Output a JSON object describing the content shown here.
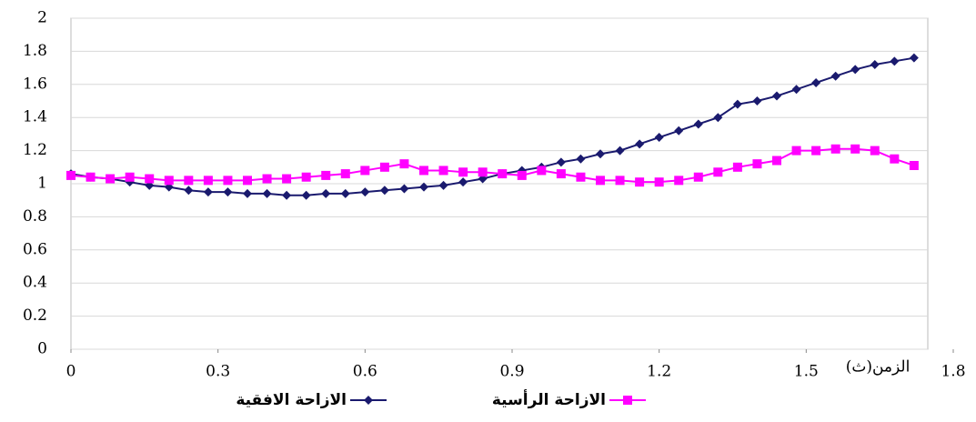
{
  "chart_data": {
    "type": "line",
    "x_label": "الزمن(ث)",
    "x": [
      0,
      0.04,
      0.08,
      0.12,
      0.16,
      0.2,
      0.24,
      0.28,
      0.32,
      0.36,
      0.4,
      0.44,
      0.48,
      0.52,
      0.56,
      0.6,
      0.64,
      0.68,
      0.72,
      0.76,
      0.8,
      0.84,
      0.88,
      0.92,
      0.96,
      1.0,
      1.04,
      1.08,
      1.12,
      1.16,
      1.2,
      1.24,
      1.28,
      1.32,
      1.36,
      1.4,
      1.44,
      1.48,
      1.52,
      1.56,
      1.6,
      1.64,
      1.68,
      1.72
    ],
    "series": [
      {
        "name": "الازاحة الافقية",
        "color": "#1a1a6e",
        "marker": "diamond",
        "values": [
          1.06,
          1.04,
          1.03,
          1.01,
          0.99,
          0.98,
          0.96,
          0.95,
          0.95,
          0.94,
          0.94,
          0.93,
          0.93,
          0.94,
          0.94,
          0.95,
          0.96,
          0.97,
          0.98,
          0.99,
          1.01,
          1.03,
          1.06,
          1.08,
          1.1,
          1.13,
          1.15,
          1.18,
          1.2,
          1.24,
          1.28,
          1.32,
          1.36,
          1.4,
          1.48,
          1.5,
          1.53,
          1.57,
          1.61,
          1.65,
          1.69,
          1.72,
          1.74,
          1.76
        ]
      },
      {
        "name": "الازاحة الرأسية",
        "color": "#ff00ff",
        "marker": "square",
        "values": [
          1.05,
          1.04,
          1.03,
          1.04,
          1.03,
          1.02,
          1.02,
          1.02,
          1.02,
          1.02,
          1.03,
          1.03,
          1.04,
          1.05,
          1.06,
          1.08,
          1.1,
          1.12,
          1.08,
          1.08,
          1.07,
          1.07,
          1.06,
          1.05,
          1.08,
          1.06,
          1.04,
          1.02,
          1.02,
          1.01,
          1.01,
          1.02,
          1.04,
          1.07,
          1.1,
          1.12,
          1.14,
          1.2,
          1.2,
          1.21,
          1.21,
          1.2,
          1.15,
          1.11
        ]
      }
    ],
    "xlim": [
      0,
      1.8
    ],
    "xticks": [
      0,
      0.3,
      0.6,
      0.9,
      1.2,
      1.5,
      1.8
    ],
    "ylim": [
      0,
      2
    ],
    "yticks": [
      0,
      0.2,
      0.4,
      0.6,
      0.8,
      1,
      1.2,
      1.4,
      1.6,
      1.8,
      2
    ],
    "grid": true
  }
}
